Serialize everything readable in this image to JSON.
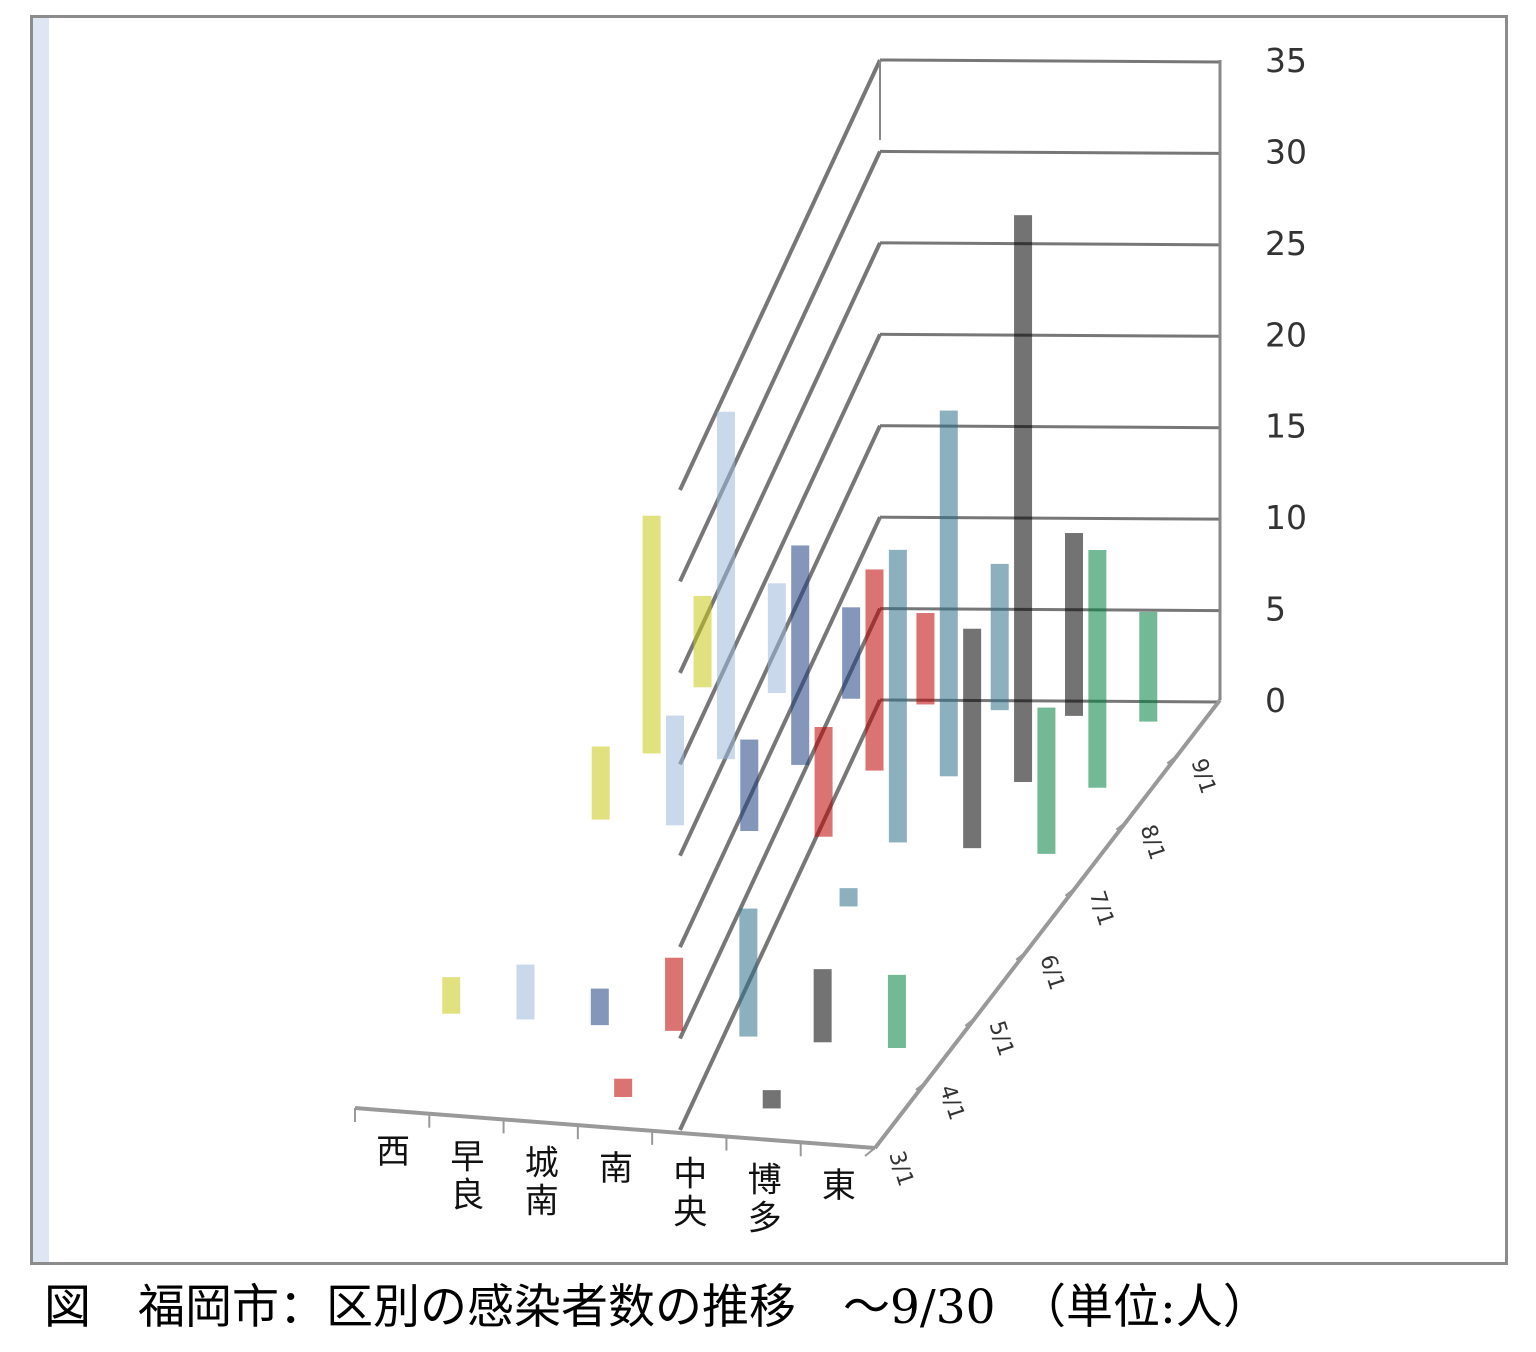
{
  "chart_data": {
    "type": "bar",
    "title": "",
    "xlabel": "",
    "ylabel": "",
    "ylim": [
      0,
      35
    ],
    "y_ticks": [
      0,
      5,
      10,
      15,
      20,
      25,
      30,
      35
    ],
    "date_ticks": [
      "3/1",
      "4/1",
      "5/1",
      "6/1",
      "7/1",
      "8/1",
      "9/1"
    ],
    "categories": [
      {
        "label": "西",
        "color": "#c8c818"
      },
      {
        "label": "早良",
        "color": "#9db8d9"
      },
      {
        "label": "城南",
        "color": "#1f3f7f"
      },
      {
        "label": "南",
        "color": "#c00000"
      },
      {
        "label": "中央",
        "color": "#2e6f86"
      },
      {
        "label": "博多",
        "color": "#000000"
      },
      {
        "label": "東",
        "color": "#008040"
      }
    ],
    "series": [
      {
        "category": "西",
        "months": [
          "3月",
          "4月",
          "5月",
          "6月",
          "7月",
          "8月",
          "9月"
        ],
        "values": [
          0,
          2,
          0,
          0,
          4,
          13,
          5
        ]
      },
      {
        "category": "早良",
        "months": [
          "3月",
          "4月",
          "5月",
          "6月",
          "7月",
          "8月",
          "9月"
        ],
        "values": [
          0,
          3,
          0,
          0,
          6,
          19,
          6
        ]
      },
      {
        "category": "城南",
        "months": [
          "3月",
          "4月",
          "5月",
          "6月",
          "7月",
          "8月",
          "9月"
        ],
        "values": [
          0,
          2,
          0,
          0,
          5,
          12,
          5
        ]
      },
      {
        "category": "南",
        "months": [
          "3月",
          "4月",
          "5月",
          "6月",
          "7月",
          "8月",
          "9月"
        ],
        "values": [
          1,
          4,
          0,
          0,
          6,
          11,
          5
        ]
      },
      {
        "category": "中央",
        "months": [
          "3月",
          "4月",
          "5月",
          "6月",
          "7月",
          "8月",
          "9月"
        ],
        "values": [
          0,
          7,
          0,
          1,
          16,
          20,
          8
        ]
      },
      {
        "category": "博多",
        "months": [
          "3月",
          "4月",
          "5月",
          "6月",
          "7月",
          "8月",
          "9月"
        ],
        "values": [
          1,
          4,
          0,
          0,
          12,
          31,
          10
        ]
      },
      {
        "category": "東",
        "months": [
          "3月",
          "4月",
          "5月",
          "6月",
          "7月",
          "8月",
          "9月"
        ],
        "values": [
          0,
          4,
          0,
          0,
          8,
          13,
          6
        ]
      }
    ]
  },
  "caption": "図　福岡市：区別の感染者数の推移　～9/30　（単位:人）"
}
